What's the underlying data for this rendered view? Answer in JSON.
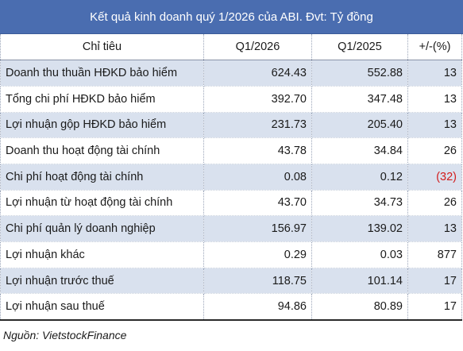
{
  "title": "Kết quả kinh doanh quý 1/2026 của ABI. Đvt: Tỷ đồng",
  "columns": [
    "Chỉ tiêu",
    "Q1/2026",
    "Q1/2025",
    "+/-(%)"
  ],
  "rows": [
    {
      "label": "Doanh thu thuần HĐKD bảo hiểm",
      "q1_2026": "624.43",
      "q1_2025": "552.88",
      "change": "13"
    },
    {
      "label": "Tổng chi phí HĐKD bảo hiểm",
      "q1_2026": "392.70",
      "q1_2025": "347.48",
      "change": "13"
    },
    {
      "label": "Lợi nhuận gộp HĐKD bảo hiểm",
      "q1_2026": "231.73",
      "q1_2025": "205.40",
      "change": "13"
    },
    {
      "label": "Doanh thu hoạt động tài chính",
      "q1_2026": "43.78",
      "q1_2025": "34.84",
      "change": "26"
    },
    {
      "label": "Chi phí hoạt động tài chính",
      "q1_2026": "0.08",
      "q1_2025": "0.12",
      "change": "(32)"
    },
    {
      "label": "Lợi nhuận từ hoạt động tài chính",
      "q1_2026": "43.70",
      "q1_2025": "34.73",
      "change": "26"
    },
    {
      "label": "Chi phí quản lý doanh nghiệp",
      "q1_2026": "156.97",
      "q1_2025": "139.02",
      "change": "13"
    },
    {
      "label": "Lợi nhuận khác",
      "q1_2026": "0.29",
      "q1_2025": "0.03",
      "change": "877"
    },
    {
      "label": "Lợi nhuận trước thuế",
      "q1_2026": "118.75",
      "q1_2025": "101.14",
      "change": "17"
    },
    {
      "label": "Lợi nhuận sau thuế",
      "q1_2026": "94.86",
      "q1_2025": "80.89",
      "change": "17"
    }
  ],
  "source": "Nguồn: VietstockFinance",
  "colors": {
    "title_background": "#4a6db0",
    "row_shade": "#d9e1ee",
    "negative": "#d21c1c"
  }
}
